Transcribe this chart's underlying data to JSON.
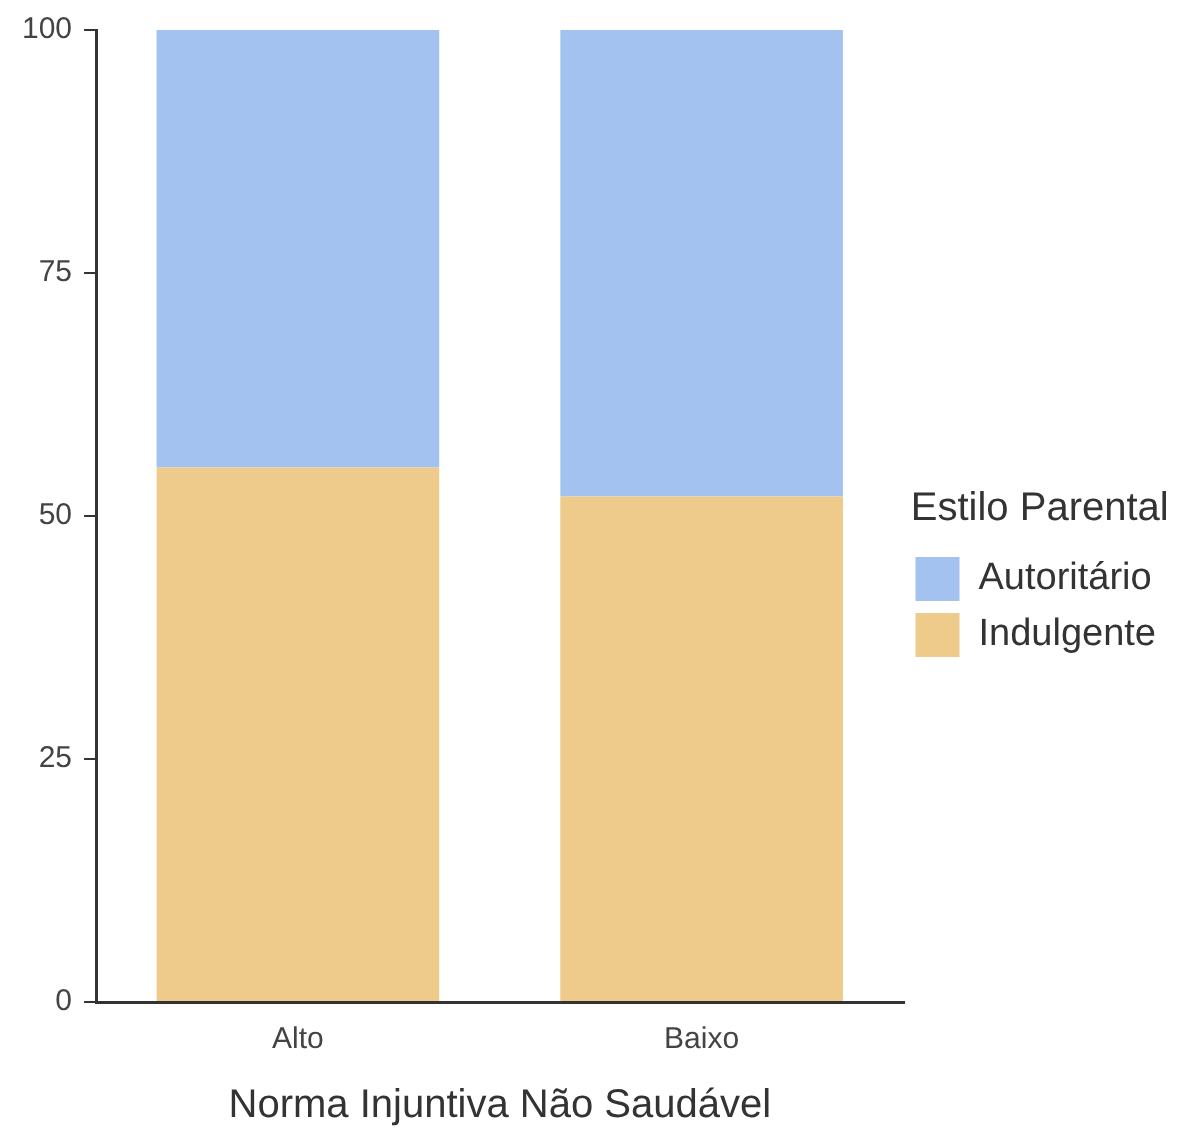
{
  "chart_data": {
    "type": "bar",
    "stacked": true,
    "xlabel": "Norma Injuntiva Não Saudável",
    "legend_title": "Estilo Parental",
    "legend": "right",
    "grid": false,
    "categories": [
      "Alto",
      "Baixo"
    ],
    "series": [
      {
        "name": "Indulgente",
        "color": "#eecb8a",
        "values": [
          55,
          52
        ]
      },
      {
        "name": "Autoritário",
        "color": "#a4c2f0",
        "values": [
          45,
          48
        ]
      }
    ],
    "ylim": [
      0,
      100
    ],
    "yticks": [
      0,
      25,
      50,
      75,
      100
    ]
  }
}
